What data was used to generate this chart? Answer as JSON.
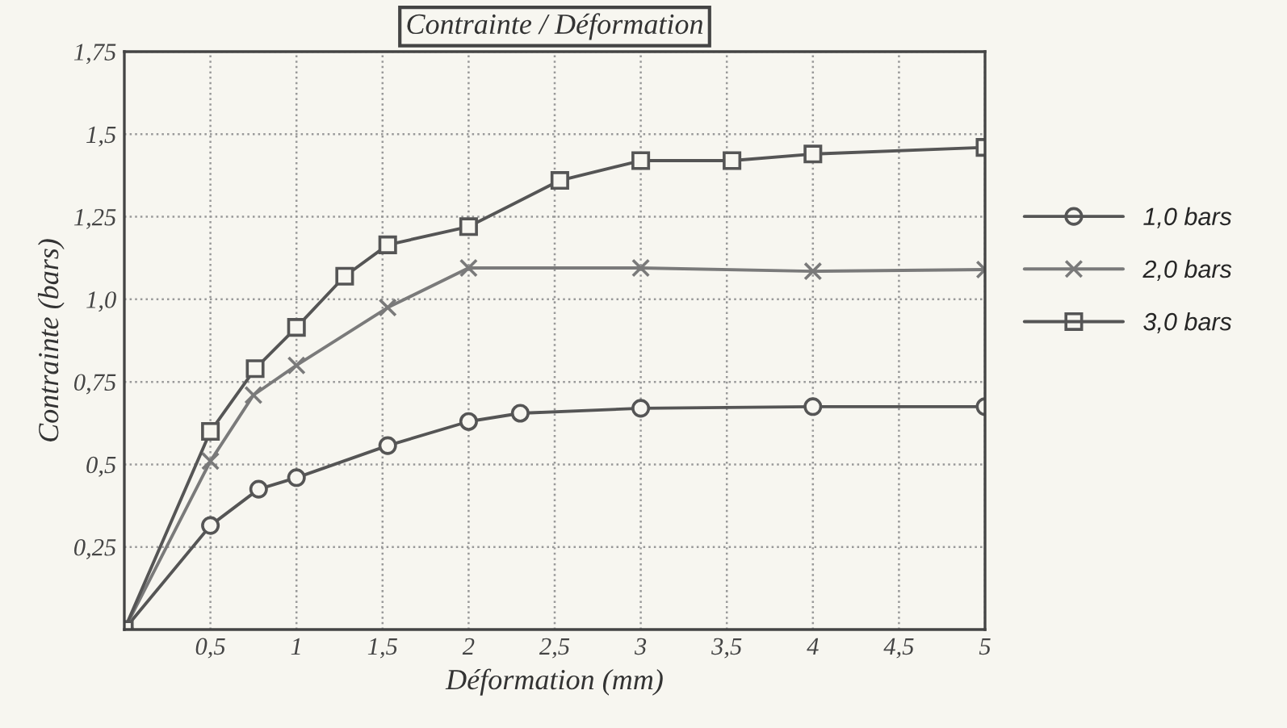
{
  "chart_data": {
    "type": "line",
    "title": "Contrainte / Déformation",
    "xlabel": "Déformation (mm)",
    "ylabel": "Contrainte (bars)",
    "xlim": [
      0,
      5
    ],
    "xticks": [
      {
        "value": 0.5,
        "label": "0,5"
      },
      1,
      {
        "value": 1.5,
        "label": "1,5"
      },
      2,
      {
        "value": 2.5,
        "label": "2,5"
      },
      3,
      {
        "value": 3.5,
        "label": "3,5"
      },
      4,
      {
        "value": 4.5,
        "label": "4,5"
      },
      5
    ],
    "ylim": [
      0,
      1.75
    ],
    "yticks": [
      {
        "value": 0.25,
        "label": "0,25"
      },
      {
        "value": 0.5,
        "label": "0,5"
      },
      {
        "value": 0.75,
        "label": "0,75"
      },
      {
        "value": 1.0,
        "label": "1,0"
      },
      {
        "value": 1.25,
        "label": "1,25"
      },
      {
        "value": 1.5,
        "label": "1,5"
      },
      {
        "value": 1.75,
        "label": "1,75"
      }
    ],
    "grid": true,
    "legend": "right",
    "line_style": "solid",
    "series": [
      {
        "name": "1,0 bars",
        "color": "#555555",
        "marker": "circle",
        "x": [
          0,
          0.5,
          0.78,
          1,
          1.53,
          2,
          2.3,
          3,
          4,
          5
        ],
        "values": [
          0,
          0.315,
          0.425,
          0.46,
          0.557,
          0.63,
          0.655,
          0.67,
          0.675,
          0.675
        ]
      },
      {
        "name": "2,0 bars",
        "color": "#7a7a7a",
        "marker": "cross",
        "x": [
          0,
          0.5,
          0.75,
          1,
          1.53,
          2,
          3,
          4,
          5
        ],
        "values": [
          0,
          0.51,
          0.71,
          0.8,
          0.975,
          1.095,
          1.095,
          1.085,
          1.09
        ]
      },
      {
        "name": "3,0 bars",
        "color": "#555555",
        "marker": "square",
        "x": [
          0,
          0.5,
          0.76,
          1,
          1.28,
          1.53,
          2,
          2.53,
          3,
          3.53,
          4,
          5
        ],
        "values": [
          0,
          0.6,
          0.79,
          0.915,
          1.07,
          1.165,
          1.22,
          1.36,
          1.42,
          1.42,
          1.44,
          1.46
        ]
      }
    ]
  }
}
